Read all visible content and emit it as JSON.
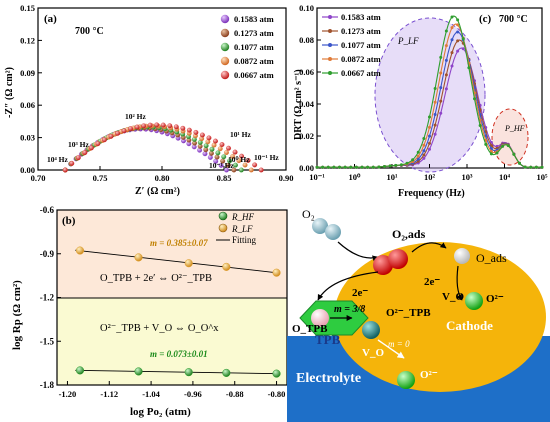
{
  "panel_a": {
    "label": "(a)",
    "temperature": "700 °C",
    "ylabel": "-Z″ (Ω cm²)",
    "xlabel": "Z′ (Ω cm²)",
    "freq_labels": [
      "10⁴ Hz",
      "10³ Hz",
      "10² Hz",
      "10¹ Hz",
      "10⁰ Hz",
      "10⁻¹ Hz",
      "10⁻¹ Hz"
    ],
    "colors": [
      "#8e44c9",
      "#a0522d",
      "#2e9e2e",
      "#e07b39",
      "#d62828"
    ]
  },
  "panel_b": {
    "label": "(b)",
    "xlabel": "log Po₂ (atm)",
    "ylabel": "log Rp (Ω cm²)",
    "legend": [
      "R_HF",
      "R_LF",
      "Fitting"
    ],
    "slope_lf": "m = 0.385±0.07",
    "slope_hf": "m = 0.073±0.01",
    "eq_top": "O_TPB + 2e′ ⇔ O²⁻_TPB",
    "eq_bottom": "O²⁻_TPB + V_O ⇔ O_O^x",
    "colors": {
      "hf": "#2e9e2e",
      "lf": "#e0a030"
    }
  },
  "panel_c": {
    "label": "(c)",
    "temperature": "700 °C",
    "ylabel": "DRT (Ω cm² s⁻¹)",
    "xlabel": "Frequency (Hz)",
    "peak_lf": "P_LF",
    "peak_hf": "P_HF",
    "colors": [
      "#8e44c9",
      "#a0522d",
      "#3a55c9",
      "#e07b39",
      "#2e9e2e"
    ]
  },
  "schematic": {
    "o2": "O₂",
    "o2ads": "O₂,ads",
    "oads": "O_ads",
    "e1": "2e⁻",
    "e2": "2e⁻",
    "vo1": "V_O",
    "o2m1": "O²⁻",
    "otpb": "O_TPB",
    "o2tpb": "O²⁻_TPB",
    "m38": "m = 3/8",
    "tpb": "TPB",
    "vo2": "V_O",
    "m0": "m = 0",
    "cathode": "Cathode",
    "electrolyte": "Electrolyte",
    "o2m2": "O²⁻"
  },
  "chart_data": [
    {
      "type": "scatter",
      "title": "(a)",
      "xlabel": "Z′ (Ω cm²)",
      "ylabel": "-Z″ (Ω cm²)",
      "xlim": [
        0.7,
        0.9
      ],
      "ylim": [
        0.0,
        0.15
      ],
      "xticks": [
        "0.70",
        "0.75",
        "0.80",
        "0.85",
        "0.90"
      ],
      "yticks": [
        "0.00",
        "0.03",
        "0.06",
        "0.09",
        "0.12",
        "0.15"
      ],
      "legend_position": "top-right",
      "series": [
        {
          "name": "0.1583 atm",
          "r_start": 0.722,
          "r_end": 0.852,
          "peak": 0.04
        },
        {
          "name": "0.1273 atm",
          "r_start": 0.722,
          "r_end": 0.858,
          "peak": 0.041
        },
        {
          "name": "0.1077 atm",
          "r_start": 0.722,
          "r_end": 0.864,
          "peak": 0.042
        },
        {
          "name": "0.0872 atm",
          "r_start": 0.722,
          "r_end": 0.872,
          "peak": 0.043
        },
        {
          "name": "0.0667 atm",
          "r_start": 0.722,
          "r_end": 0.88,
          "peak": 0.044
        }
      ]
    },
    {
      "type": "scatter",
      "title": "(b)",
      "xlabel": "log Po₂ (atm)",
      "ylabel": "log Rp (Ω cm²)",
      "xlim": [
        -1.22,
        -0.78
      ],
      "ylim": [
        -1.8,
        -0.6
      ],
      "xticks": [
        "-1.20",
        "-1.12",
        "-1.04",
        "-0.96",
        "-0.88",
        "-0.80"
      ],
      "yticks": [
        "-0.6",
        "-0.9",
        "-1.2",
        "-1.5",
        "-1.8"
      ],
      "legend_position": "top-right",
      "series": [
        {
          "name": "R_HF",
          "x": [
            -1.176,
            -1.064,
            -0.968,
            -0.896,
            -0.8
          ],
          "y": [
            -1.7,
            -1.707,
            -1.712,
            -1.717,
            -1.722
          ]
        },
        {
          "name": "R_LF",
          "x": [
            -1.176,
            -1.064,
            -0.968,
            -0.896,
            -0.8
          ],
          "y": [
            -0.878,
            -0.925,
            -0.965,
            -0.99,
            -1.03
          ]
        }
      ]
    },
    {
      "type": "line",
      "title": "(c)",
      "xlabel": "Frequency (Hz)",
      "ylabel": "DRT (Ω cm² s⁻¹)",
      "xlim_log10": [
        -1,
        5
      ],
      "ylim": [
        0.0,
        0.1
      ],
      "xticks": [
        "10⁻¹",
        "10⁰",
        "10¹",
        "10²",
        "10³",
        "10⁴",
        "10⁵"
      ],
      "yticks": [
        "0.00",
        "0.02",
        "0.04",
        "0.06",
        "0.08",
        "0.10"
      ],
      "legend_position": "top-left",
      "series": [
        {
          "name": "0.1583 atm",
          "peak_hf": 0.075,
          "peak_lf": 2.85
        },
        {
          "name": "0.1273 atm",
          "peak_hf": 0.08,
          "peak_lf": 2.8
        },
        {
          "name": "0.1077 atm",
          "peak_hf": 0.085,
          "peak_lf": 2.75
        },
        {
          "name": "0.0872 atm",
          "peak_hf": 0.09,
          "peak_lf": 2.7
        },
        {
          "name": "0.0667 atm",
          "peak_hf": 0.095,
          "peak_lf": 2.65
        }
      ]
    }
  ]
}
